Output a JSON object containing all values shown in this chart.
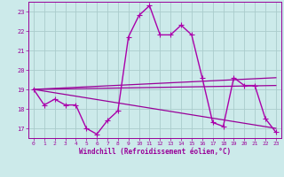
{
  "xlabel": "Windchill (Refroidissement éolien,°C)",
  "background_color": "#cceaea",
  "grid_color": "#aacccc",
  "line_color": "#990099",
  "xlim": [
    -0.5,
    23.5
  ],
  "ylim": [
    16.5,
    23.5
  ],
  "yticks": [
    17,
    18,
    19,
    20,
    21,
    22,
    23
  ],
  "xticks": [
    0,
    1,
    2,
    3,
    4,
    5,
    6,
    7,
    8,
    9,
    10,
    11,
    12,
    13,
    14,
    15,
    16,
    17,
    18,
    19,
    20,
    21,
    22,
    23
  ],
  "series": [
    {
      "x": [
        0,
        1,
        2,
        3,
        4,
        5,
        6,
        7,
        8,
        9,
        10,
        11,
        12,
        13,
        14,
        15,
        16,
        17,
        18,
        19,
        20,
        21,
        22,
        23
      ],
      "y": [
        19.0,
        18.2,
        18.5,
        18.2,
        18.2,
        17.0,
        16.7,
        17.4,
        17.9,
        21.7,
        22.8,
        23.3,
        21.8,
        21.8,
        22.3,
        21.8,
        19.6,
        17.3,
        17.1,
        19.6,
        19.2,
        19.2,
        17.5,
        16.8
      ],
      "color": "#aa00aa",
      "linewidth": 1.0,
      "marker": "+",
      "markersize": 4
    },
    {
      "x": [
        0,
        23
      ],
      "y": [
        19.0,
        19.2
      ],
      "color": "#990099",
      "linewidth": 0.9
    },
    {
      "x": [
        0,
        23
      ],
      "y": [
        19.0,
        19.6
      ],
      "color": "#990099",
      "linewidth": 0.9
    },
    {
      "x": [
        0,
        23
      ],
      "y": [
        19.0,
        17.0
      ],
      "color": "#990099",
      "linewidth": 0.9
    }
  ]
}
